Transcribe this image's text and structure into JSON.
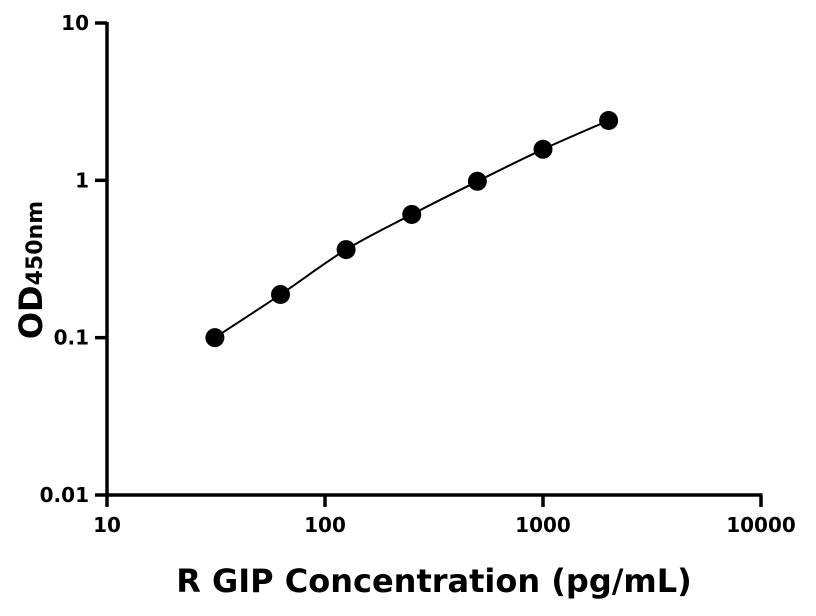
{
  "chart_data": {
    "type": "scatter",
    "title": "",
    "xlabel": "R GIP Concentration (pg/mL)",
    "ylabel_main": "OD",
    "ylabel_sub": "450nm",
    "x_scale": "log",
    "y_scale": "log",
    "xlim": [
      10,
      10000
    ],
    "ylim": [
      0.01,
      10
    ],
    "x_ticks": [
      "10",
      "100",
      "1000",
      "10000"
    ],
    "y_ticks": [
      "0.01",
      "0.1",
      "1",
      "10"
    ],
    "grid": false,
    "series": [
      {
        "x": [
          31.25,
          62.5,
          125,
          250,
          500,
          1000,
          2000
        ],
        "y": [
          0.1,
          0.188,
          0.363,
          0.607,
          0.986,
          1.575,
          2.4
        ],
        "fit_curve": true
      }
    ],
    "colors": {
      "points": "#000000",
      "line": "#000000"
    }
  }
}
